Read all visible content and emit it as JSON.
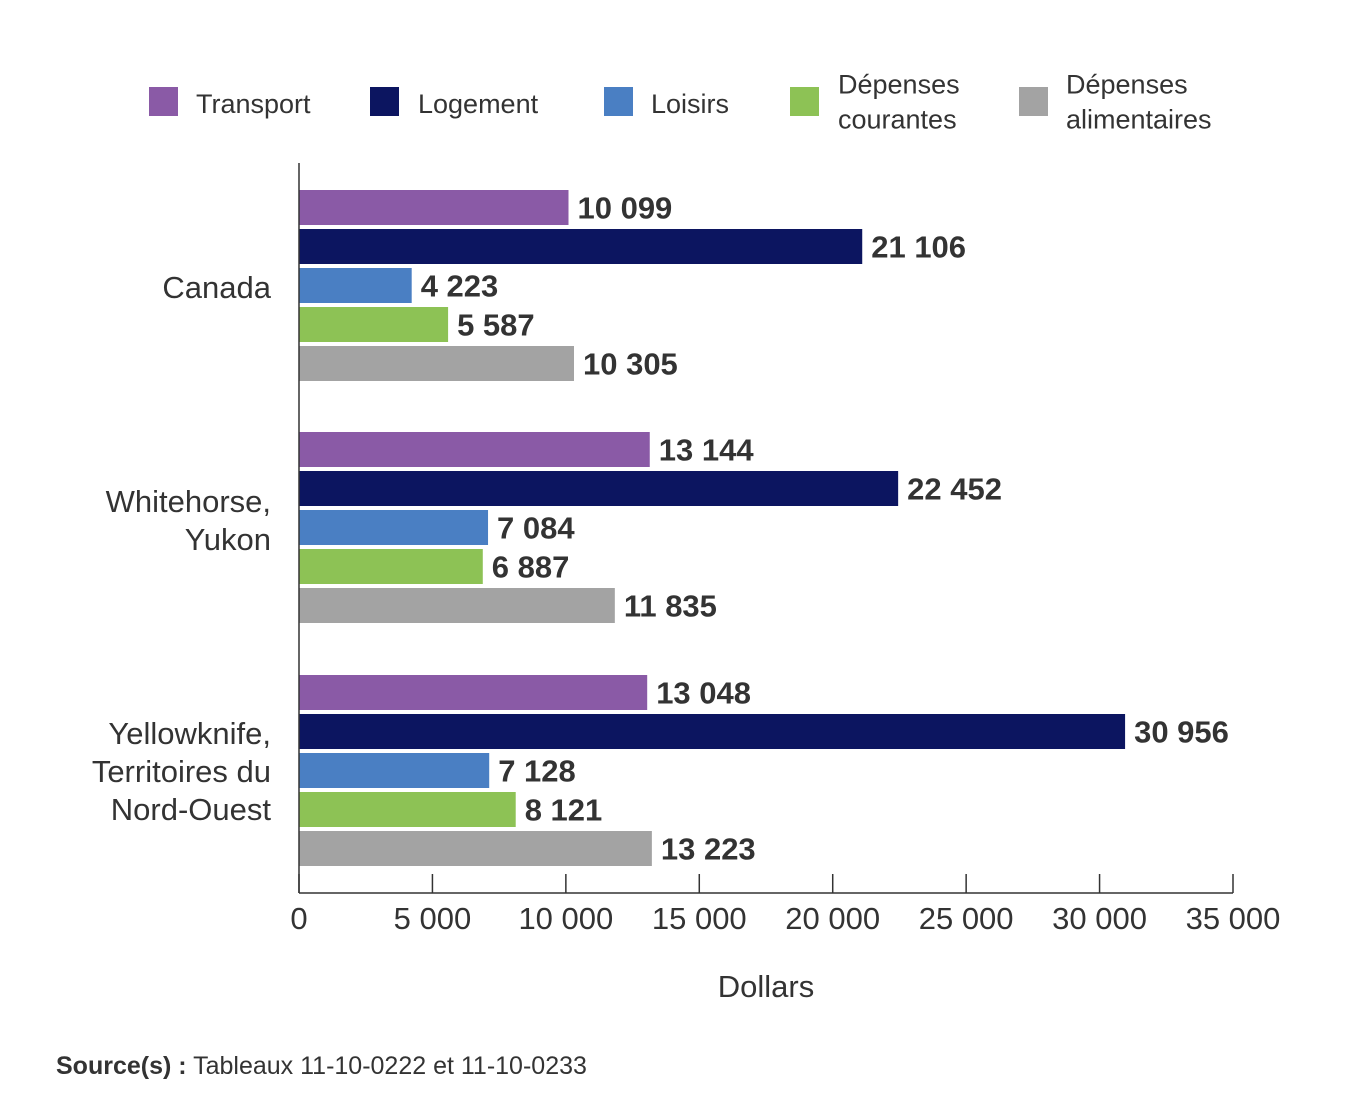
{
  "chart_data": {
    "type": "bar",
    "orientation": "horizontal",
    "categories": [
      [
        "Canada"
      ],
      [
        "Whitehorse,",
        "Yukon"
      ],
      [
        "Yellowknife,",
        "Territoires du",
        "Nord-Ouest"
      ]
    ],
    "series": [
      {
        "name": [
          "Transport"
        ],
        "color": "#8a5aa6",
        "values": [
          10099,
          13144,
          13048
        ],
        "labels": [
          "10 099",
          "13 144",
          "13 048"
        ]
      },
      {
        "name": [
          "Logement"
        ],
        "color": "#0c1560",
        "values": [
          21106,
          22452,
          30956
        ],
        "labels": [
          "21 106",
          "22 452",
          "30 956"
        ]
      },
      {
        "name": [
          "Loisirs"
        ],
        "color": "#4a7fc3",
        "values": [
          4223,
          7084,
          7128
        ],
        "labels": [
          "4 223",
          "7 084",
          "7 128"
        ]
      },
      {
        "name": [
          "Dépenses",
          "courantes"
        ],
        "color": "#8dc255",
        "values": [
          5587,
          6887,
          8121
        ],
        "labels": [
          "5 587",
          "6 887",
          "8 121"
        ]
      },
      {
        "name": [
          "Dépenses",
          "alimentaires"
        ],
        "color": "#a3a3a3",
        "values": [
          10305,
          11835,
          13223
        ],
        "labels": [
          "10 305",
          "11 835",
          "13 223"
        ]
      }
    ],
    "xlabel": "Dollars",
    "xlim": [
      0,
      35000
    ],
    "xticks": [
      {
        "value": 0,
        "label": "0"
      },
      {
        "value": 5000,
        "label": "5 000"
      },
      {
        "value": 10000,
        "label": "10 000"
      },
      {
        "value": 15000,
        "label": "15 000"
      },
      {
        "value": 20000,
        "label": "20 000"
      },
      {
        "value": 25000,
        "label": "25 000"
      },
      {
        "value": 30000,
        "label": "30 000"
      },
      {
        "value": 35000,
        "label": "35 000"
      }
    ],
    "grid": false,
    "legend_position": "top"
  },
  "source": {
    "label": "Source(s) :",
    "text": "Tableaux 11-10-0222 et 11-10-0233"
  }
}
